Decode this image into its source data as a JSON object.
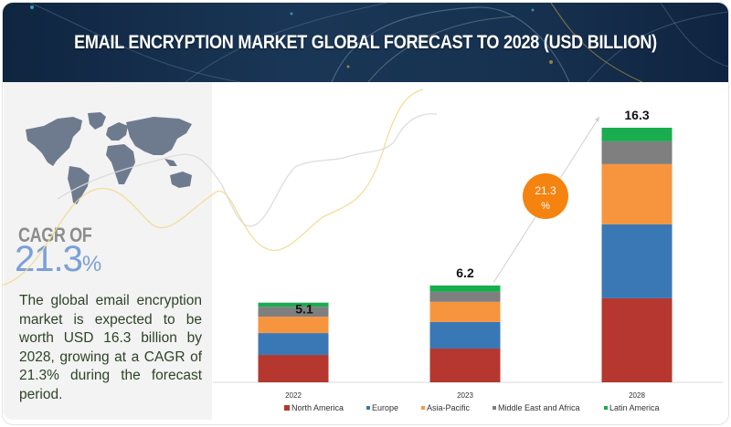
{
  "header": {
    "title": "EMAIL ENCRYPTION MARKET GLOBAL FORECAST TO 2028 (USD BILLION)"
  },
  "left_panel": {
    "map_icon": "world-map-icon",
    "cagr_label": "CAGR OF",
    "cagr_value": "21.3",
    "cagr_unit": "%",
    "description": "The global email encryption market is expected to be worth USD 16.3 billion by 2028, growing at a CAGR of 21.3% during the forecast period."
  },
  "chart_data": {
    "type": "bar",
    "stacked": true,
    "title": "EMAIL ENCRYPTION MARKET GLOBAL FORECAST TO 2028 (USD BILLION)",
    "xlabel": "",
    "ylabel": "",
    "categories": [
      "2022",
      "2023",
      "2028"
    ],
    "totals": [
      5.1,
      6.2,
      16.3
    ],
    "total_labels": [
      "5.1",
      "6.2",
      "16.3"
    ],
    "series": [
      {
        "name": "North America",
        "color": "#b5372f",
        "values": [
          1.75,
          2.16,
          5.38
        ]
      },
      {
        "name": "Europe",
        "color": "#3a77b5",
        "values": [
          1.4,
          1.7,
          4.73
        ]
      },
      {
        "name": "Asia-Pacific",
        "color": "#f7953f",
        "values": [
          1.05,
          1.29,
          3.86
        ]
      },
      {
        "name": "Middle East and Africa",
        "color": "#7f7f7f",
        "values": [
          0.64,
          0.64,
          1.46
        ]
      },
      {
        "name": "Latin America",
        "color": "#19ad50",
        "values": [
          0.26,
          0.41,
          0.87
        ]
      }
    ],
    "ylim": [
      0,
      16.3
    ],
    "grid": false,
    "legend_position": "bottom",
    "annotation": {
      "text_line1": "21.3",
      "text_line2": "%",
      "color": "#f5830f",
      "meaning": "CAGR 2023-2028"
    }
  }
}
